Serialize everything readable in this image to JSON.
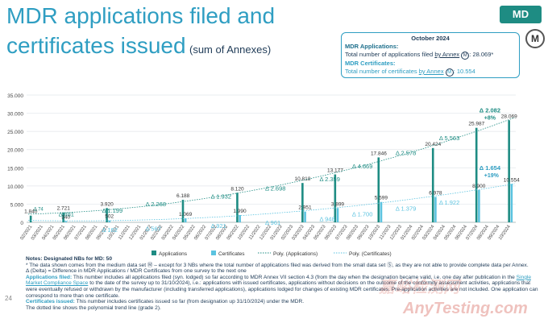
{
  "header": {
    "title": "MDR applications filed and certificates issued",
    "subtitle": "(sum of Annexes)",
    "badge": "MD",
    "logo": "M"
  },
  "infobox": {
    "heading": "October 2024",
    "applications_label": "MDR Applications:",
    "applications_text_a": "Total number of applications filed",
    "applications_link": "by Annex",
    "applications_text_b": ": 28.069*",
    "certificates_label": "MDR Certificates:",
    "certificates_text_a": "Total number of certificates",
    "certificates_link": "by Annex",
    "certificates_text_b": ": 10.554",
    "symbol": "M"
  },
  "chart_data": {
    "type": "bar",
    "ylim": [
      0,
      35000
    ],
    "yticks": [
      "0",
      "5.000",
      "10.000",
      "15.000",
      "20.000",
      "25.000",
      "30.000",
      "35.000"
    ],
    "ytick_values": [
      0,
      5000,
      10000,
      15000,
      20000,
      25000,
      30000,
      35000
    ],
    "categories": [
      "02/2021",
      "03/2021",
      "04/2021",
      "05/2021",
      "06/2021",
      "07/2021",
      "08/2021",
      "09/2021",
      "10/2021",
      "11/2021",
      "12/2021",
      "01/2022",
      "02/2022",
      "03/2022",
      "04/2022",
      "05/2022",
      "06/2022",
      "07/2022",
      "08/2022",
      "09/2022",
      "10/2022",
      "11/2022",
      "12/2022",
      "01/2023",
      "02/2023",
      "03/2023",
      "04/2023",
      "05/2023",
      "06/2023",
      "07/2023",
      "08/2023",
      "09/2023",
      "10/2023",
      "11/2023",
      "12/2023",
      "01/2024",
      "02/2024",
      "03/2024",
      "04/2024",
      "05/2024",
      "06/2024",
      "07/2024",
      "08/2024",
      "09/2024",
      "10/2024"
    ],
    "series": [
      {
        "name": "Applications",
        "color": "#1e8c83",
        "values": [
          1840,
          null,
          null,
          2721,
          null,
          null,
          null,
          3920,
          null,
          null,
          null,
          null,
          null,
          null,
          6188,
          null,
          null,
          null,
          null,
          8120,
          null,
          null,
          null,
          null,
          null,
          10818,
          null,
          null,
          13177,
          null,
          null,
          null,
          17846,
          null,
          null,
          null,
          null,
          20424,
          null,
          null,
          null,
          25987,
          null,
          null,
          28069
        ],
        "labels": [
          "1.840",
          "2.721",
          "3.920",
          "6.188",
          "8.120",
          "10.818",
          "13.177",
          "17.846",
          "20.424",
          "25.987",
          "28.069"
        ]
      },
      {
        "name": "Certificates",
        "color": "#5bc3e0",
        "values": [
          null,
          null,
          null,
          340,
          null,
          null,
          null,
          502,
          null,
          null,
          null,
          null,
          null,
          null,
          1069,
          null,
          null,
          null,
          null,
          1990,
          null,
          null,
          null,
          null,
          null,
          2951,
          null,
          null,
          3899,
          null,
          null,
          null,
          5599,
          null,
          null,
          null,
          null,
          6978,
          null,
          null,
          null,
          8900,
          null,
          null,
          10554
        ],
        "labels": [
          "340",
          "502",
          "1.069",
          "1.990",
          "2.951",
          "3.899",
          "5.599",
          "6.978",
          "8.900",
          "10.554"
        ]
      }
    ],
    "deltas": [
      {
        "at": "02/2021",
        "text": "74",
        "kind": "small"
      },
      {
        "at": "04/2021",
        "text": "881",
        "kind": "app"
      },
      {
        "at": "04/2021",
        "text": "116",
        "kind": "cert"
      },
      {
        "at": "08/2021",
        "text": "1.199",
        "kind": "app"
      },
      {
        "at": "08/2021",
        "text": "162",
        "kind": "cert"
      },
      {
        "at": "12/2021",
        "text": "2.268",
        "kind": "app"
      },
      {
        "at": "12/2021",
        "text": "567",
        "kind": "cert"
      },
      {
        "at": "06/2022",
        "text": "1.932",
        "kind": "app"
      },
      {
        "at": "06/2022",
        "text": "921",
        "kind": "cert"
      },
      {
        "at": "11/2022",
        "text": "2.698",
        "kind": "app"
      },
      {
        "at": "11/2022",
        "text": "961",
        "kind": "cert"
      },
      {
        "at": "04/2023",
        "text": "2.359",
        "kind": "app"
      },
      {
        "at": "04/2023",
        "text": "948",
        "kind": "cert"
      },
      {
        "at": "07/2023",
        "text": "4.669",
        "kind": "app"
      },
      {
        "at": "07/2023",
        "text": "1.700",
        "kind": "cert"
      },
      {
        "at": "11/2023",
        "text": "2.578",
        "kind": "app"
      },
      {
        "at": "11/2023",
        "text": "1.379",
        "kind": "cert"
      },
      {
        "at": "03/2024",
        "text": "5.563",
        "kind": "app"
      },
      {
        "at": "03/2024",
        "text": "1.922",
        "kind": "cert"
      },
      {
        "at": "07/2024",
        "text": "2.082",
        "kind": "app-last"
      },
      {
        "at": "07/2024",
        "text": "1.654",
        "kind": "cert-last"
      }
    ],
    "delta_symbol": "Δ",
    "pct_app": "+8%",
    "pct_cert": "+19%",
    "legend": [
      "Applications",
      "Certificates",
      "Poly. (Applications)",
      "Poly. (Certificates)"
    ]
  },
  "notes": {
    "n1": "Notes: Designated NBs for MD: 50",
    "n2": "* The data shown comes from the medium data set Ⓜ – except for 3 NBs where the total number of applications filed was derived from the small data set Ⓢ, as they are not able to provide complete data per Annex.",
    "n3": "Δ (Delta) = Difference in MDR Applications / MDR Certificates from one survey to the next one",
    "n4_label": "Applications filed:",
    "n4a": "This number includes all applications filed (syn. lodged) so far according to MDR Annex VII section 4.3 (from the day when the designation became valid, i.e. one day after publication in the",
    "n4_link": "Single Market Compliance Space",
    "n4b": "to the date of the survey up to 31/10/2024), i.e.: applications with issued certificates, applications without decisions on the outcome of the conformity assessment activities, applications that were eventually refused or withdrawn by the manufacturer (including transferred applications), applications lodged for changes of existing MDR certificates. Pre-application activities are not included. One application can correspond to more than one certificate.",
    "n5_label": "Certificates issued:",
    "n5": "This number includes certificates issued so far (from designation up 31/10/2024) under the MDR.",
    "n6": "The dotted line shows the polynomial trend line (grade 2)."
  },
  "page_number": "24",
  "watermark_cn": "嘉峪检测网",
  "watermark_en": "AnyTesting.com"
}
